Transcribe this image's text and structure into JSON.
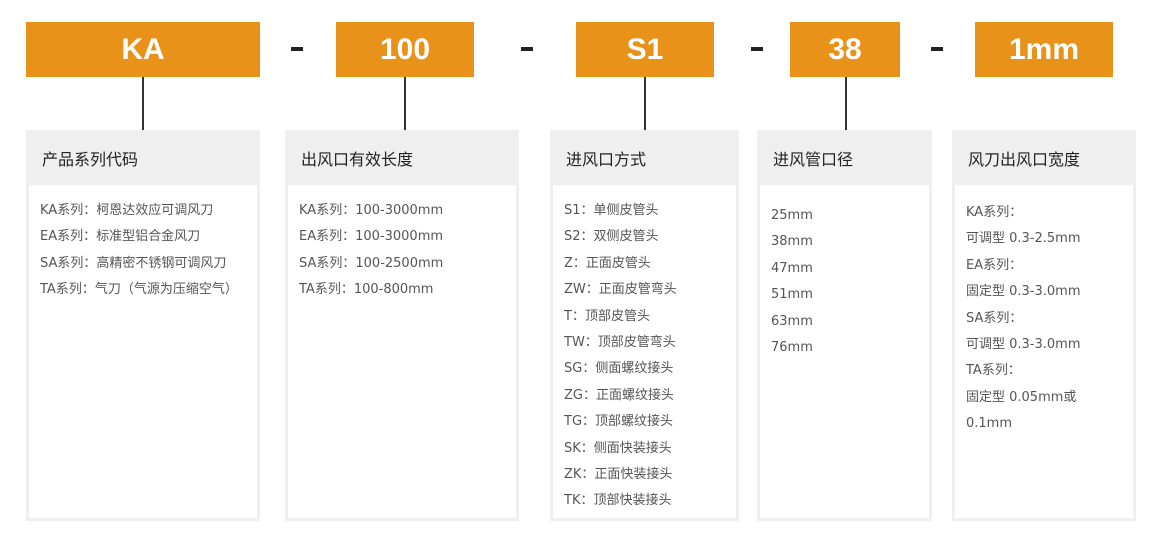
{
  "codes": [
    "KA",
    "100",
    "S1",
    "38",
    "1mm"
  ],
  "separator": "-",
  "cards": [
    {
      "title": "产品系列代码",
      "items": [
        "KA系列：柯恩达效应可调风刀",
        "EA系列：标准型铝合金风刀",
        "SA系列：高精密不锈钢可调风刀",
        "TA系列：气刀（气源为压缩空气）"
      ]
    },
    {
      "title": "出风口有效长度",
      "items": [
        "KA系列：100-3000mm",
        "EA系列：100-3000mm",
        "SA系列：100-2500mm",
        "TA系列：100-800mm"
      ]
    },
    {
      "title": "进风口方式",
      "items": [
        "S1：单侧皮管头",
        "S2：双侧皮管头",
        "Z：正面皮管头",
        "ZW：正面皮管弯头",
        "T：顶部皮管头",
        "TW：顶部皮管弯头",
        "SG：侧面螺纹接头",
        "ZG：正面螺纹接头",
        "TG：顶部螺纹接头",
        "SK：侧面快装接头",
        "ZK：正面快装接头",
        "TK：顶部快装接头"
      ]
    },
    {
      "title": "进风管口径",
      "items": [
        "25mm",
        "38mm",
        "47mm",
        "51mm",
        "63mm",
        "76mm"
      ]
    },
    {
      "title": "风刀出风口宽度",
      "items": [
        "KA系列：",
        "可调型 0.3-2.5mm",
        "EA系列：",
        "固定型 0.3-3.0mm",
        "SA系列：",
        "可调型 0.3-3.0mm",
        "TA系列：",
        "固定型 0.05mm或",
        "0.1mm"
      ]
    }
  ],
  "colors": {
    "accent": "#e9921a",
    "card_bg": "#efefef"
  }
}
